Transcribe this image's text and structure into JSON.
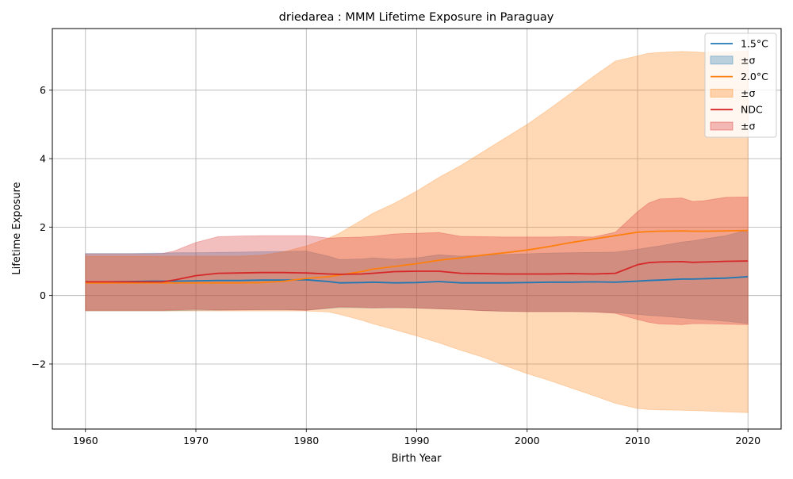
{
  "chart_data": {
    "type": "line",
    "title": "driedarea : MMM Lifetime Exposure in Paraguay",
    "xlabel": "Birth Year",
    "ylabel": "Lifetime Exposure",
    "xlim": [
      1957,
      2023
    ],
    "ylim": [
      -3.9,
      7.8
    ],
    "xticks": [
      1960,
      1970,
      1980,
      1990,
      2000,
      2010,
      2020
    ],
    "yticks": [
      -2,
      0,
      2,
      4,
      6
    ],
    "ytick_labels": [
      "−2",
      "0",
      "2",
      "4",
      "6"
    ],
    "grid": true,
    "legend_position": "top-right",
    "x": [
      1960,
      1962,
      1964,
      1966,
      1967,
      1968,
      1970,
      1972,
      1974,
      1976,
      1978,
      1980,
      1982,
      1983,
      1985,
      1986,
      1988,
      1990,
      1992,
      1994,
      1996,
      1998,
      2000,
      2002,
      2004,
      2006,
      2008,
      2010,
      2011,
      2012,
      2014,
      2015,
      2016,
      2018,
      2020
    ],
    "series": [
      {
        "name": "1.5°C",
        "color": "#1f77b4",
        "values": [
          0.4,
          0.4,
          0.41,
          0.42,
          0.42,
          0.42,
          0.43,
          0.44,
          0.44,
          0.45,
          0.45,
          0.46,
          0.41,
          0.37,
          0.38,
          0.39,
          0.37,
          0.38,
          0.41,
          0.37,
          0.37,
          0.37,
          0.38,
          0.39,
          0.39,
          0.4,
          0.39,
          0.42,
          0.44,
          0.45,
          0.48,
          0.48,
          0.49,
          0.51,
          0.55
        ],
        "upper": [
          1.23,
          1.23,
          1.23,
          1.24,
          1.24,
          1.25,
          1.25,
          1.26,
          1.27,
          1.28,
          1.29,
          1.3,
          1.15,
          1.05,
          1.07,
          1.1,
          1.06,
          1.1,
          1.19,
          1.15,
          1.18,
          1.2,
          1.22,
          1.24,
          1.25,
          1.26,
          1.27,
          1.35,
          1.4,
          1.45,
          1.56,
          1.6,
          1.65,
          1.75,
          1.92
        ],
        "lower": [
          -0.45,
          -0.45,
          -0.45,
          -0.45,
          -0.45,
          -0.44,
          -0.43,
          -0.43,
          -0.42,
          -0.42,
          -0.42,
          -0.43,
          -0.38,
          -0.35,
          -0.36,
          -0.37,
          -0.36,
          -0.37,
          -0.39,
          -0.41,
          -0.44,
          -0.46,
          -0.47,
          -0.47,
          -0.47,
          -0.48,
          -0.5,
          -0.55,
          -0.58,
          -0.6,
          -0.65,
          -0.68,
          -0.7,
          -0.75,
          -0.82
        ]
      },
      {
        "name": "2.0°C",
        "color": "#ff7f0e",
        "values": [
          0.37,
          0.37,
          0.37,
          0.37,
          0.37,
          0.37,
          0.37,
          0.37,
          0.37,
          0.38,
          0.42,
          0.5,
          0.55,
          0.6,
          0.7,
          0.77,
          0.85,
          0.93,
          1.03,
          1.1,
          1.18,
          1.25,
          1.33,
          1.43,
          1.55,
          1.65,
          1.75,
          1.85,
          1.87,
          1.88,
          1.89,
          1.88,
          1.88,
          1.89,
          1.9
        ],
        "upper": [
          1.15,
          1.15,
          1.15,
          1.15,
          1.15,
          1.15,
          1.15,
          1.15,
          1.15,
          1.18,
          1.28,
          1.45,
          1.68,
          1.82,
          2.2,
          2.4,
          2.7,
          3.05,
          3.45,
          3.8,
          4.2,
          4.6,
          5.0,
          5.45,
          5.92,
          6.4,
          6.85,
          7.0,
          7.08,
          7.1,
          7.13,
          7.12,
          7.1,
          7.12,
          7.15
        ],
        "lower": [
          -0.45,
          -0.45,
          -0.45,
          -0.45,
          -0.45,
          -0.45,
          -0.45,
          -0.45,
          -0.45,
          -0.45,
          -0.45,
          -0.45,
          -0.48,
          -0.55,
          -0.72,
          -0.82,
          -1.0,
          -1.18,
          -1.38,
          -1.6,
          -1.8,
          -2.05,
          -2.28,
          -2.48,
          -2.7,
          -2.92,
          -3.15,
          -3.3,
          -3.33,
          -3.34,
          -3.35,
          -3.36,
          -3.37,
          -3.4,
          -3.42
        ]
      },
      {
        "name": "NDC",
        "color": "#d62728",
        "values": [
          0.4,
          0.4,
          0.4,
          0.4,
          0.4,
          0.45,
          0.58,
          0.65,
          0.66,
          0.67,
          0.67,
          0.66,
          0.63,
          0.62,
          0.63,
          0.65,
          0.7,
          0.71,
          0.71,
          0.65,
          0.64,
          0.63,
          0.63,
          0.63,
          0.64,
          0.63,
          0.65,
          0.9,
          0.96,
          0.98,
          0.99,
          0.97,
          0.98,
          1.0,
          1.01
        ],
        "upper": [
          1.22,
          1.22,
          1.22,
          1.22,
          1.23,
          1.3,
          1.55,
          1.72,
          1.74,
          1.75,
          1.75,
          1.75,
          1.68,
          1.69,
          1.71,
          1.73,
          1.8,
          1.82,
          1.84,
          1.73,
          1.72,
          1.71,
          1.71,
          1.71,
          1.72,
          1.71,
          1.85,
          2.45,
          2.7,
          2.82,
          2.85,
          2.75,
          2.77,
          2.87,
          2.88
        ],
        "lower": [
          -0.43,
          -0.43,
          -0.43,
          -0.43,
          -0.43,
          -0.42,
          -0.4,
          -0.42,
          -0.42,
          -0.41,
          -0.41,
          -0.43,
          -0.36,
          -0.33,
          -0.34,
          -0.35,
          -0.34,
          -0.36,
          -0.39,
          -0.41,
          -0.44,
          -0.46,
          -0.47,
          -0.47,
          -0.47,
          -0.48,
          -0.52,
          -0.7,
          -0.78,
          -0.83,
          -0.85,
          -0.82,
          -0.82,
          -0.84,
          -0.85
        ]
      }
    ],
    "legend": [
      {
        "label": "1.5°C",
        "kind": "line",
        "color": "#1f77b4"
      },
      {
        "label": "±σ",
        "kind": "patch",
        "color": "#1f77b4"
      },
      {
        "label": "2.0°C",
        "kind": "line",
        "color": "#ff7f0e"
      },
      {
        "label": "±σ",
        "kind": "patch",
        "color": "#ff7f0e"
      },
      {
        "label": "NDC",
        "kind": "line",
        "color": "#d62728"
      },
      {
        "label": "±σ",
        "kind": "patch",
        "color": "#d62728"
      }
    ]
  }
}
